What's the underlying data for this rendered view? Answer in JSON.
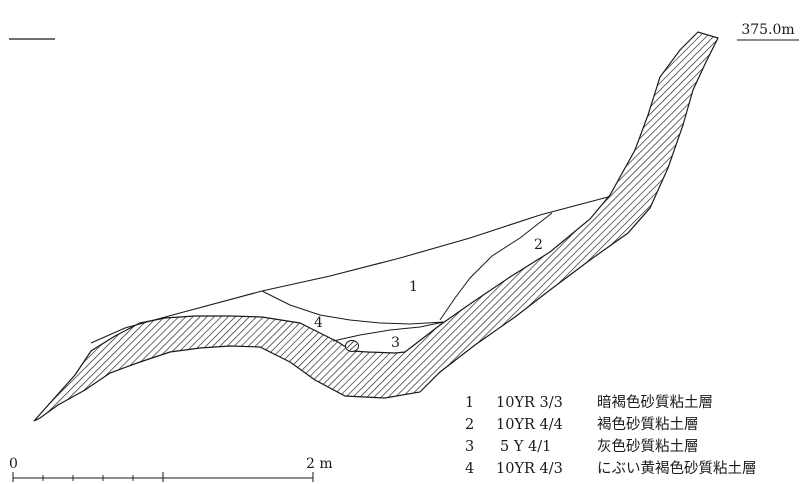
{
  "elevation": {
    "label": "375.0m"
  },
  "layer_labels": [
    "1",
    "2",
    "3",
    "4"
  ],
  "legend": [
    {
      "num": "1",
      "color_code": "10YR 3/3",
      "description": "暗褐色砂質粘土層"
    },
    {
      "num": "2",
      "color_code": "10YR 4/4",
      "description": "褐色砂質粘土層"
    },
    {
      "num": "3",
      "color_code": "5 Y 4/1",
      "description": "灰色砂質粘土層"
    },
    {
      "num": "4",
      "color_code": "10YR 4/3",
      "description": "にぶい黄褐色砂質粘土層"
    }
  ],
  "scale_bar": {
    "start_label": "0",
    "end_label": "2 m"
  }
}
